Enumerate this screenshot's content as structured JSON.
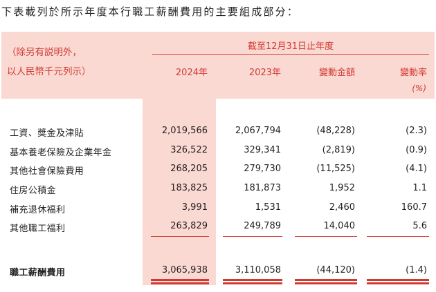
{
  "intro": "下表載列於所示年度本行職工薪酬費用的主要組成部分：",
  "header": {
    "note_line1": "（除另有説明外，",
    "note_line2": "以人民幣千元列示）",
    "period": "截至12月31日止年度",
    "col_2024": "2024年",
    "col_2023": "2023年",
    "col_change": "變動金額",
    "col_rate": "變動率",
    "rate_unit": "(%)"
  },
  "rows": [
    {
      "label": "工資、獎金及津貼",
      "y2024": "2,019,566",
      "y2023": "2,067,794",
      "change": "(48,228)",
      "rate": "(2.3)"
    },
    {
      "label": "基本養老保險及企業年金",
      "y2024": "326,522",
      "y2023": "329,341",
      "change": "(2,819)",
      "rate": "(0.9)"
    },
    {
      "label": "其他社會保險費用",
      "y2024": "268,205",
      "y2023": "279,730",
      "change": "(11,525)",
      "rate": "(4.1)"
    },
    {
      "label": "住房公積金",
      "y2024": "183,825",
      "y2023": "181,873",
      "change": "1,952",
      "rate": "1.1"
    },
    {
      "label": "補充退休福利",
      "y2024": "3,991",
      "y2023": "1,531",
      "change": "2,460",
      "rate": "160.7"
    },
    {
      "label": "其他職工福利",
      "y2024": "263,829",
      "y2023": "249,789",
      "change": "14,040",
      "rate": "5.6"
    }
  ],
  "total": {
    "label": "職工薪酬費用",
    "y2024": "3,065,938",
    "y2023": "3,110,058",
    "change": "(44,120)",
    "rate": "(1.4)"
  },
  "colors": {
    "accent": "#d13a33",
    "band": "#fbd9d3",
    "text": "#231f20"
  }
}
